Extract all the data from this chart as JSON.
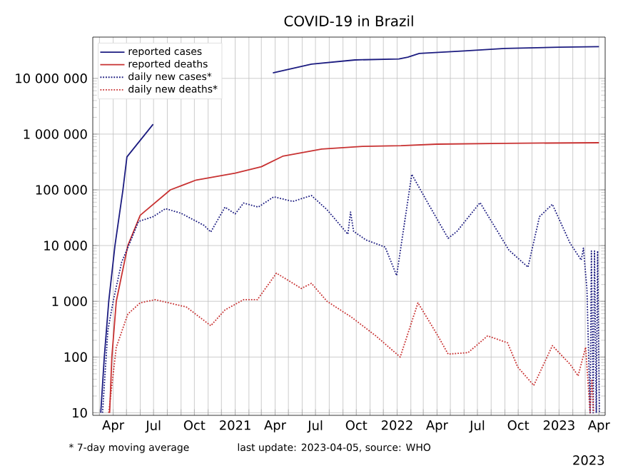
{
  "chart_data": {
    "type": "line",
    "title": "COVID-19 in Brazil",
    "annotations": [
      "* 7-day moving average",
      "last update: 2023-04-05, source: WHO",
      "2023"
    ],
    "log": "y",
    "grid": true,
    "legend": "top left",
    "marker": "none",
    "xlim": [
      "2020-02-15",
      "2023-04-15"
    ],
    "xticks": [
      {
        "value": "2020-03",
        "label": null
      },
      {
        "value": "2020-04",
        "label": "Apr"
      },
      {
        "value": "2020-05",
        "label": null
      },
      {
        "value": "2020-06",
        "label": null
      },
      {
        "value": "2020-07",
        "label": "Jul"
      },
      {
        "value": "2020-08",
        "label": null
      },
      {
        "value": "2020-09",
        "label": null
      },
      {
        "value": "2020-10",
        "label": "Oct"
      },
      {
        "value": "2020-11",
        "label": null
      },
      {
        "value": "2020-12",
        "label": null
      },
      {
        "value": "2021-01",
        "label": "2021"
      },
      {
        "value": "2021-02",
        "label": null
      },
      {
        "value": "2021-03",
        "label": null
      },
      {
        "value": "2021-04",
        "label": "Apr"
      },
      {
        "value": "2021-05",
        "label": null
      },
      {
        "value": "2021-06",
        "label": null
      },
      {
        "value": "2021-07",
        "label": "Jul"
      },
      {
        "value": "2021-08",
        "label": null
      },
      {
        "value": "2021-09",
        "label": null
      },
      {
        "value": "2021-10",
        "label": "Oct"
      },
      {
        "value": "2021-11",
        "label": null
      },
      {
        "value": "2021-12",
        "label": null
      },
      {
        "value": "2022-01",
        "label": "2022"
      },
      {
        "value": "2022-02",
        "label": null
      },
      {
        "value": "2022-03",
        "label": null
      },
      {
        "value": "2022-04",
        "label": "Apr"
      },
      {
        "value": "2022-05",
        "label": null
      },
      {
        "value": "2022-06",
        "label": null
      },
      {
        "value": "2022-07",
        "label": "Jul"
      },
      {
        "value": "2022-08",
        "label": null
      },
      {
        "value": "2022-09",
        "label": null
      },
      {
        "value": "2022-10",
        "label": "Oct"
      },
      {
        "value": "2022-11",
        "label": null
      },
      {
        "value": "2022-12",
        "label": null
      },
      {
        "value": "2023-01",
        "label": "2023"
      },
      {
        "value": "2023-02",
        "label": null
      },
      {
        "value": "2023-03",
        "label": null
      },
      {
        "value": "2023-04",
        "label": "Apr"
      }
    ],
    "ylim": [
      9,
      55000000
    ],
    "yticks": [
      {
        "value": 10,
        "label": "10"
      },
      {
        "value": 100,
        "label": "100"
      },
      {
        "value": 1000,
        "label": "1 000"
      },
      {
        "value": 10000,
        "label": "10 000"
      },
      {
        "value": 100000,
        "label": "100 000"
      },
      {
        "value": 1000000,
        "label": "1 000 000"
      },
      {
        "value": 10000000,
        "label": "10 000 000"
      }
    ],
    "series": [
      {
        "name": "reported cases",
        "color": "#1c1c80",
        "line_style": "solid",
        "x": [
          "2020-03-04",
          "2020-03-12",
          "2020-03-22",
          "2020-04-05",
          "2020-04-23",
          "2020-05-02",
          "2020-06-30",
          "2020-09-13",
          "2021-01-01",
          "2021-03-27",
          "2021-06-22",
          "2021-09-28",
          "2022-01-05",
          "2022-01-25",
          "2022-02-20",
          "2022-06-01",
          "2022-09-01",
          "2023-01-01",
          "2023-04-01"
        ],
        "values": [
          10,
          100,
          1000,
          10000,
          100000,
          390000,
          1500000,
          null,
          null,
          12500000,
          18000000,
          21400000,
          22300000,
          24000000,
          28000000,
          31000000,
          34500000,
          36300000,
          37100000
        ]
      },
      {
        "name": "reported deaths",
        "color": "#c83232",
        "line_style": "solid",
        "x": [
          "2020-03-24",
          "2020-03-29",
          "2020-04-08",
          "2020-05-04",
          "2020-06-01",
          "2020-08-08",
          "2020-10-05",
          "2021-01-01",
          "2021-03-01",
          "2021-04-18",
          "2021-07-15",
          "2021-10-15",
          "2022-01-10",
          "2022-04-01",
          "2022-09-01",
          "2023-04-01"
        ],
        "values": [
          10,
          100,
          1000,
          10000,
          35000,
          100000,
          150000,
          200000,
          260000,
          400000,
          540000,
          603000,
          620000,
          660000,
          684000,
          700000
        ]
      },
      {
        "name": "daily new cases*",
        "color": "#1c1c80",
        "line_style": "dotted",
        "x": [
          "2020-03-08",
          "2020-03-20",
          "2020-04-01",
          "2020-04-20",
          "2020-05-10",
          "2020-05-28",
          "2020-06-30",
          "2020-07-28",
          "2020-09-01",
          "2020-10-23",
          "2020-11-07",
          "2020-12-09",
          "2021-01-01",
          "2021-01-20",
          "2021-02-22",
          "2021-03-29",
          "2021-05-11",
          "2021-06-22",
          "2021-07-27",
          "2021-09-12",
          "2021-09-18",
          "2021-09-25",
          "2021-10-23",
          "2021-12-05",
          "2021-12-31",
          "2022-02-03",
          "2022-03-13",
          "2022-04-26",
          "2022-05-16",
          "2022-07-07",
          "2022-09-10",
          "2022-10-23",
          "2022-11-18",
          "2022-12-17",
          "2023-01-26",
          "2023-02-20",
          "2023-02-25",
          "2023-03-05",
          "2023-03-12",
          "2023-03-15",
          "2023-03-19",
          "2023-03-22",
          "2023-03-26",
          "2023-03-29",
          "2023-04-02"
        ],
        "values": [
          10,
          300,
          1000,
          5000,
          12000,
          27000,
          33000,
          46000,
          38000,
          23000,
          17500,
          49000,
          37000,
          58000,
          49000,
          75000,
          62000,
          79000,
          44000,
          16000,
          40000,
          18000,
          12600,
          9400,
          2900,
          190000,
          55000,
          13500,
          18000,
          59000,
          8300,
          4100,
          33000,
          55000,
          11000,
          5500,
          9000,
          1600,
          10,
          8000,
          10,
          8000,
          10,
          8000,
          10
        ]
      },
      {
        "name": "daily new deaths*",
        "color": "#c83232",
        "line_style": "dotted",
        "x": [
          "2020-03-22",
          "2020-04-08",
          "2020-05-04",
          "2020-06-01",
          "2020-07-05",
          "2020-09-13",
          "2020-11-07",
          "2020-12-09",
          "2021-01-20",
          "2021-02-20",
          "2021-04-04",
          "2021-05-30",
          "2021-06-22",
          "2021-07-27",
          "2021-09-20",
          "2021-11-14",
          "2022-01-08",
          "2022-02-17",
          "2022-04-03",
          "2022-04-26",
          "2022-06-10",
          "2022-07-24",
          "2022-09-07",
          "2022-09-30",
          "2022-11-05",
          "2022-12-17",
          "2023-01-26",
          "2023-02-13",
          "2023-03-02",
          "2023-03-12",
          "2023-03-16",
          "2023-03-20"
        ],
        "values": [
          10,
          150,
          590,
          940,
          1070,
          790,
          365,
          700,
          1070,
          1070,
          3200,
          1700,
          2100,
          1000,
          520,
          240,
          100,
          940,
          240,
          113,
          120,
          240,
          180,
          66,
          31,
          160,
          74,
          46,
          150,
          10,
          40,
          10
        ]
      }
    ]
  }
}
